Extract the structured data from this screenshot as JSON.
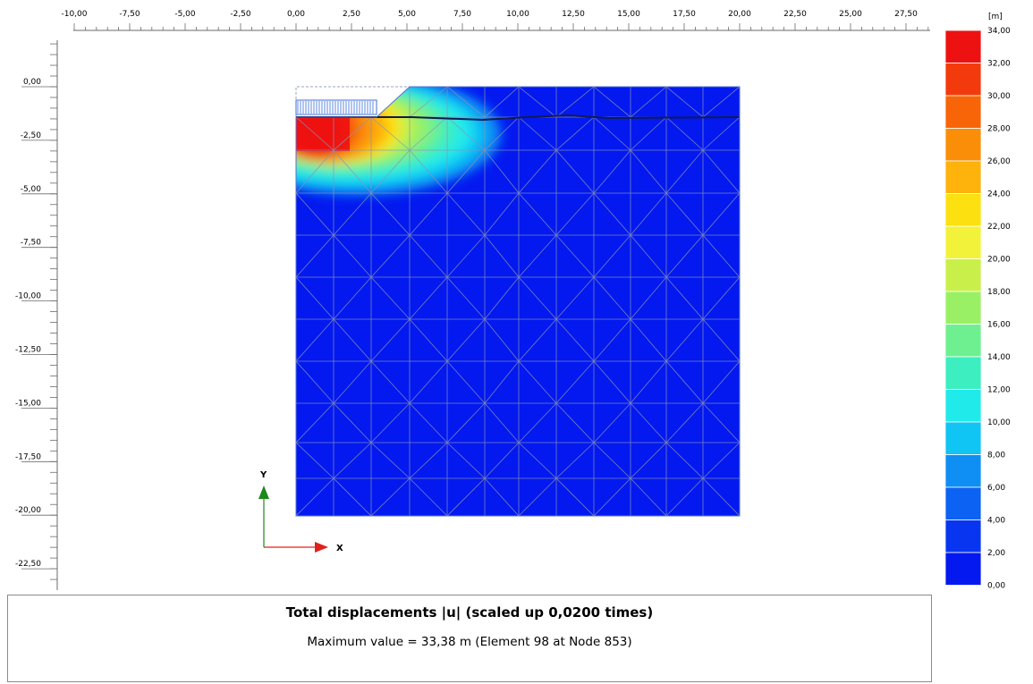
{
  "plot": {
    "x_ticks": [
      "-10,00",
      "-7,50",
      "-5,00",
      "-2,50",
      "0,00",
      "2,50",
      "5,00",
      "7,50",
      "10,00",
      "12,50",
      "15,00",
      "17,50",
      "20,00",
      "22,50",
      "25,00",
      "27,50"
    ],
    "y_ticks": [
      "0,00",
      "-2,50",
      "-5,00",
      "-7,50",
      "-10,00",
      "-12,50",
      "-15,00",
      "-17,50",
      "-20,00",
      "-22,50"
    ],
    "x_range": [
      -10,
      27.5
    ],
    "y_range": [
      0,
      -22.5
    ],
    "axis_x_label": "X",
    "axis_y_label": "Y",
    "axis_x_color": "#e0201a",
    "axis_y_color": "#1a8a1a"
  },
  "legend": {
    "unit": "[m]",
    "values": [
      "34,00",
      "32,00",
      "30,00",
      "28,00",
      "26,00",
      "24,00",
      "22,00",
      "20,00",
      "18,00",
      "16,00",
      "14,00",
      "12,00",
      "10,00",
      "8,00",
      "6,00",
      "4,00",
      "2,00",
      "0,00"
    ],
    "colors": [
      "#ee1111",
      "#f33a0c",
      "#f76508",
      "#fb8e08",
      "#fdb20c",
      "#fde010",
      "#f3f23a",
      "#c9f04a",
      "#9af065",
      "#6ef090",
      "#3ceec0",
      "#20eaea",
      "#10c4f4",
      "#0f8ef4",
      "#0c62f2",
      "#0836f0",
      "#0319ef"
    ]
  },
  "caption": {
    "title": "Total displacements |u| (scaled up 0,0200 times)",
    "subtitle": "Maximum value = 33,38 m (Element 98 at Node 853)"
  }
}
